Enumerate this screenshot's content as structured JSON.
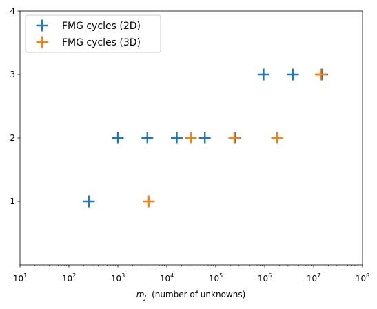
{
  "chart_data": {
    "type": "scatter",
    "title": "",
    "xlabel_var": "m",
    "xlabel_sub": "J",
    "xlabel_rest": "(number of unknowns)",
    "xscale": "log",
    "xlim": [
      10,
      100000000
    ],
    "ylim": [
      0,
      4
    ],
    "x_ticks": [
      {
        "value": 10,
        "base": "10",
        "exp": "1"
      },
      {
        "value": 100,
        "base": "10",
        "exp": "2"
      },
      {
        "value": 1000,
        "base": "10",
        "exp": "3"
      },
      {
        "value": 10000,
        "base": "10",
        "exp": "4"
      },
      {
        "value": 100000,
        "base": "10",
        "exp": "5"
      },
      {
        "value": 1000000,
        "base": "10",
        "exp": "6"
      },
      {
        "value": 10000000,
        "base": "10",
        "exp": "7"
      },
      {
        "value": 100000000,
        "base": "10",
        "exp": "8"
      }
    ],
    "y_ticks": [
      "1",
      "2",
      "3",
      "4"
    ],
    "grid": false,
    "legend_position": "top-left",
    "marker": "plus",
    "series": [
      {
        "name": "FMG cycles (2D)",
        "color": "#1f77b4",
        "points": [
          {
            "x": 256,
            "y": 1
          },
          {
            "x": 1000,
            "y": 2
          },
          {
            "x": 4000,
            "y": 2
          },
          {
            "x": 16000,
            "y": 2
          },
          {
            "x": 60000,
            "y": 2
          },
          {
            "x": 250000,
            "y": 2
          },
          {
            "x": 950000,
            "y": 3
          },
          {
            "x": 3800000,
            "y": 3
          },
          {
            "x": 15000000,
            "y": 3
          }
        ]
      },
      {
        "name": "FMG cycles (3D)",
        "color": "#ff7f0e",
        "points": [
          {
            "x": 4300,
            "y": 1
          },
          {
            "x": 31000,
            "y": 2
          },
          {
            "x": 240000,
            "y": 2
          },
          {
            "x": 1800000,
            "y": 2
          },
          {
            "x": 14000000,
            "y": 3
          }
        ]
      }
    ]
  }
}
